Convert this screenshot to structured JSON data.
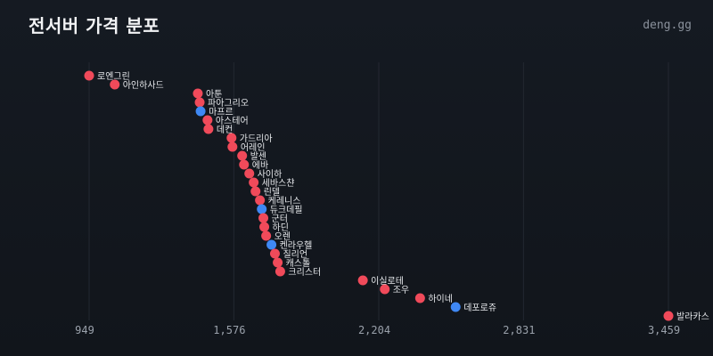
{
  "title": "전서버 가격 분포",
  "brand": "deng.gg",
  "colors": {
    "background": "#12161c",
    "grid": "#232831",
    "tick_text": "#9aa1ab",
    "label_text": "#e6e8eb",
    "red": "#f04a5a",
    "blue": "#3f88f4"
  },
  "chart_data": {
    "type": "scatter",
    "title": "전서버 가격 분포",
    "xlabel": "",
    "ylabel": "",
    "grid": true,
    "xlim": [
      949,
      3459
    ],
    "xticks": [
      949,
      1576,
      2204,
      2831,
      3459
    ],
    "xtick_labels": [
      "949",
      "1,576",
      "2,204",
      "2,831",
      "3,459"
    ],
    "points": [
      {
        "label": "로엔그린",
        "value": 949,
        "color": "red"
      },
      {
        "label": "아인하사드",
        "value": 1060,
        "color": "red"
      },
      {
        "label": "아툰",
        "value": 1420,
        "color": "red"
      },
      {
        "label": "파아그리오",
        "value": 1428,
        "color": "red"
      },
      {
        "label": "마프르",
        "value": 1432,
        "color": "blue"
      },
      {
        "label": "아스테어",
        "value": 1462,
        "color": "red"
      },
      {
        "label": "데컨",
        "value": 1466,
        "color": "red"
      },
      {
        "label": "가드리아",
        "value": 1566,
        "color": "red"
      },
      {
        "label": "어레인",
        "value": 1570,
        "color": "red"
      },
      {
        "label": "발센",
        "value": 1612,
        "color": "red"
      },
      {
        "label": "에바",
        "value": 1620,
        "color": "red"
      },
      {
        "label": "사이하",
        "value": 1643,
        "color": "red"
      },
      {
        "label": "세바스챤",
        "value": 1662,
        "color": "red"
      },
      {
        "label": "린델",
        "value": 1670,
        "color": "red"
      },
      {
        "label": "케레니스",
        "value": 1689,
        "color": "red"
      },
      {
        "label": "듀크데필",
        "value": 1697,
        "color": "blue"
      },
      {
        "label": "군터",
        "value": 1704,
        "color": "red"
      },
      {
        "label": "하딘",
        "value": 1708,
        "color": "red"
      },
      {
        "label": "오렌",
        "value": 1716,
        "color": "red"
      },
      {
        "label": "켄라우헬",
        "value": 1739,
        "color": "blue"
      },
      {
        "label": "질리언",
        "value": 1754,
        "color": "red"
      },
      {
        "label": "캐스톨",
        "value": 1766,
        "color": "red"
      },
      {
        "label": "크리스터",
        "value": 1777,
        "color": "red"
      },
      {
        "label": "이실로테",
        "value": 2135,
        "color": "red"
      },
      {
        "label": "조우",
        "value": 2230,
        "color": "red"
      },
      {
        "label": "하이네",
        "value": 2383,
        "color": "red"
      },
      {
        "label": "데포로쥬",
        "value": 2537,
        "color": "blue"
      },
      {
        "label": "발라카스",
        "value": 3459,
        "color": "red"
      }
    ]
  }
}
